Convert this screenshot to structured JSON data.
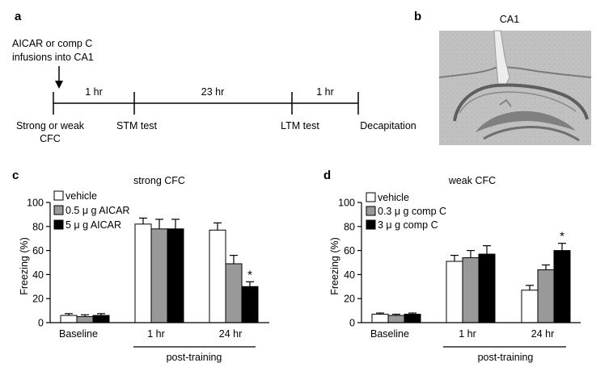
{
  "panel_a": {
    "label": "a",
    "infusion_line1": "AICAR or comp C",
    "infusion_line2": "infusions into CA1",
    "intervals": [
      "1 hr",
      "23 hr",
      "1 hr"
    ],
    "events": [
      {
        "line1": "Strong or weak",
        "line2": "CFC"
      },
      {
        "line1": "STM test",
        "line2": ""
      },
      {
        "line1": "LTM test",
        "line2": ""
      },
      {
        "line1": "Decapitation",
        "line2": ""
      }
    ]
  },
  "panel_b": {
    "label": "b",
    "title": "CA1",
    "image": "hippocampus-histology-section"
  },
  "panel_c": {
    "label": "c"
  },
  "panel_d": {
    "label": "d"
  },
  "colors": {
    "vehicle": "#ffffff",
    "low_dose": "#999999",
    "high_dose": "#000000",
    "error_bar": "#000000"
  },
  "chart_data": [
    {
      "type": "bar",
      "title": "strong CFC",
      "xlabel": "",
      "ylabel": "Freezing (%)",
      "ylim": [
        0,
        100
      ],
      "yticks": [
        0,
        20,
        40,
        60,
        80,
        100
      ],
      "categories": [
        "Baseline",
        "1 hr",
        "24 hr"
      ],
      "group_label": "post-training",
      "legend_position": "top-left",
      "series": [
        {
          "name": "vehicle",
          "values": [
            6,
            82,
            77
          ],
          "errors": [
            1.5,
            5,
            6
          ]
        },
        {
          "name": "0.5 μ g AICAR",
          "values": [
            5,
            78,
            49
          ],
          "errors": [
            1.5,
            8,
            7
          ]
        },
        {
          "name": "5 μ g AICAR",
          "values": [
            6,
            78,
            30
          ],
          "errors": [
            1.5,
            8,
            4
          ]
        }
      ],
      "annotations": [
        {
          "category": "24 hr",
          "series": "5 μ g AICAR",
          "text": "*"
        }
      ]
    },
    {
      "type": "bar",
      "title": "weak CFC",
      "xlabel": "",
      "ylabel": "Freezing (%)",
      "ylim": [
        0,
        100
      ],
      "yticks": [
        0,
        20,
        40,
        60,
        80,
        100
      ],
      "categories": [
        "Baseline",
        "1 hr",
        "24 hr"
      ],
      "group_label": "post-training",
      "legend_position": "top-left",
      "series": [
        {
          "name": "vehicle",
          "values": [
            7,
            51,
            27
          ],
          "errors": [
            1,
            5,
            4
          ]
        },
        {
          "name": "0.3 μ g comp C",
          "values": [
            6,
            54,
            44
          ],
          "errors": [
            1,
            6,
            4
          ]
        },
        {
          "name": "3 μ g comp C",
          "values": [
            7,
            57,
            60
          ],
          "errors": [
            1,
            7,
            6
          ]
        }
      ],
      "annotations": [
        {
          "category": "24 hr",
          "series": "3 μ g comp C",
          "text": "*"
        }
      ]
    }
  ]
}
